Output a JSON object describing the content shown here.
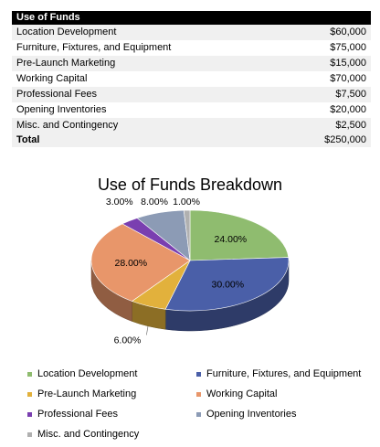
{
  "table": {
    "header": "Use of Funds",
    "rows": [
      {
        "label": "Location Development",
        "amount": "$60,000"
      },
      {
        "label": "Furniture, Fixtures, and Equipment",
        "amount": "$75,000"
      },
      {
        "label": "Pre-Launch Marketing",
        "amount": "$15,000"
      },
      {
        "label": "Working Capital",
        "amount": "$70,000"
      },
      {
        "label": "Professional Fees",
        "amount": "$7,500"
      },
      {
        "label": "Opening Inventories",
        "amount": "$20,000"
      },
      {
        "label": "Misc. and Contingency",
        "amount": "$2,500"
      }
    ],
    "total_label": "Total",
    "total_amount": "$250,000"
  },
  "chart_data": {
    "type": "pie",
    "title": "Use of Funds Breakdown",
    "categories": [
      "Location Development",
      "Furniture, Fixtures, and Equipment",
      "Pre-Launch Marketing",
      "Working Capital",
      "Professional Fees",
      "Opening Inventories",
      "Misc. and Contingency"
    ],
    "values": [
      24.0,
      30.0,
      6.0,
      28.0,
      3.0,
      8.0,
      1.0
    ],
    "data_labels": [
      "24.00%",
      "30.00%",
      "6.00%",
      "28.00%",
      "3.00%",
      "8.00%",
      "1.00%"
    ],
    "colors": [
      "#8fbc6f",
      "#4a5fa8",
      "#e2b13c",
      "#e8966a",
      "#7a3fb0",
      "#8c9bb5",
      "#b0b0b0"
    ],
    "style": "3d",
    "legend_position": "bottom"
  }
}
